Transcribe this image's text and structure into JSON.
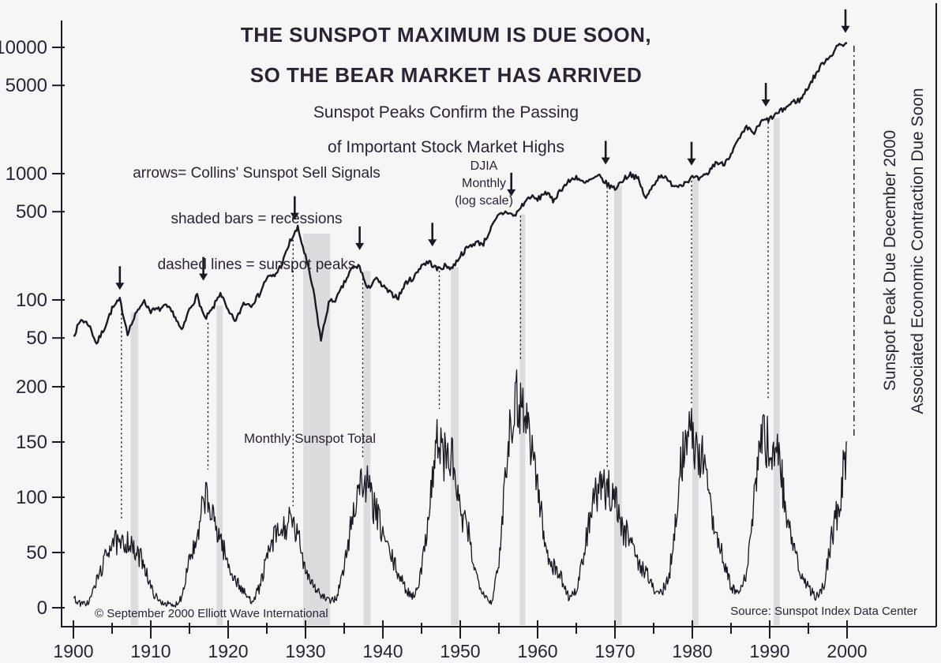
{
  "title": {
    "line1": "THE SUNSPOT MAXIMUM IS DUE SOON,",
    "line2": "SO THE BEAR MARKET HAS ARRIVED"
  },
  "subtitle": {
    "line1": "Sunspot Peaks Confirm the Passing",
    "line2": "of Important Stock Market Highs"
  },
  "legend": {
    "line1": "arrows= Collins' Sunspot Sell Signals",
    "line2": "shaded bars = recessions",
    "line3": "dashed lines = sunspot peaks"
  },
  "series_labels": {
    "djia": "DJIA\nMonthly\n(log scale)",
    "sunspot": "Monthly Sunspot Total"
  },
  "right_labels": {
    "line1": "Sunspot Peak Due December 2000",
    "line2": "Associated Economic Contraction Due Soon"
  },
  "footer": {
    "copyright": "© September 2000 Elliott Wave International",
    "source": "Source: Sunspot Index Data Center"
  },
  "colors": {
    "ink": "#2b2433",
    "line": "#1c1923",
    "band": "#dcdcdf",
    "background": "#f7f6f7"
  },
  "chart_data": {
    "type": "line",
    "title": "THE SUNSPOT MAXIMUM IS DUE SOON, SO THE BEAR MARKET HAS ARRIVED",
    "subtitle": "Sunspot Peaks Confirm the Passing of Important Stock Market Highs",
    "x_range": [
      1900,
      2000
    ],
    "x_ticks_major": [
      1900,
      1910,
      1920,
      1930,
      1940,
      1950,
      1960,
      1970,
      1980,
      1990,
      2000
    ],
    "x_tick_minor_step": 5,
    "djia_axis": {
      "scale": "log",
      "label": "DJIA Monthly (log scale)",
      "ticks": [
        10000,
        5000,
        1000,
        500,
        100,
        50
      ]
    },
    "sunspot_axis": {
      "scale": "linear",
      "label": "Monthly Sunspot Total",
      "ticks": [
        200,
        150,
        100,
        50,
        0
      ]
    },
    "series": [
      {
        "name": "DJIA Monthly (log scale)",
        "start_year": 1900,
        "values": [
          52,
          70,
          64,
          45,
          60,
          85,
          100,
          55,
          75,
          99,
          82,
          84,
          89,
          77,
          56,
          85,
          108,
          70,
          85,
          115,
          80,
          68,
          95,
          92,
          110,
          150,
          155,
          195,
          290,
          370,
          220,
          120,
          48,
          95,
          102,
          135,
          178,
          185,
          120,
          148,
          128,
          112,
          105,
          138,
          150,
          190,
          200,
          175,
          185,
          180,
          225,
          260,
          285,
          280,
          370,
          470,
          500,
          460,
          560,
          660,
          620,
          720,
          610,
          750,
          860,
          950,
          830,
          900,
          950,
          820,
          760,
          890,
          1000,
          900,
          630,
          830,
          990,
          850,
          800,
          850,
          930,
          900,
          1000,
          1230,
          1180,
          1450,
          1850,
          2300,
          2100,
          2600,
          2700,
          3000,
          3300,
          3700,
          3850,
          4900,
          6200,
          7700,
          8800,
          10500,
          10800
        ]
      },
      {
        "name": "Monthly Sunspot Total",
        "start_year": 1900,
        "values": [
          9,
          3,
          5,
          24,
          42,
          63,
          54,
          62,
          48,
          44,
          18,
          6,
          4,
          1,
          10,
          47,
          57,
          104,
          80,
          64,
          38,
          25,
          14,
          6,
          17,
          44,
          64,
          69,
          78,
          65,
          36,
          21,
          11,
          6,
          9,
          36,
          80,
          114,
          110,
          88,
          67,
          47,
          31,
          16,
          10,
          33,
          93,
          152,
          136,
          134,
          84,
          69,
          31,
          14,
          4,
          38,
          142,
          190,
          185,
          159,
          112,
          54,
          38,
          28,
          10,
          15,
          47,
          94,
          106,
          106,
          104,
          67,
          69,
          38,
          34,
          16,
          13,
          28,
          93,
          155,
          155,
          140,
          116,
          67,
          46,
          18,
          13,
          29,
          100,
          158,
          143,
          146,
          94,
          55,
          30,
          18,
          9,
          21,
          64,
          93,
          150
        ]
      }
    ],
    "sell_signal_arrows": [
      [
        1906.0,
        120
      ],
      [
        1916.8,
        142
      ],
      [
        1928.6,
        430
      ],
      [
        1937.0,
        248
      ],
      [
        1946.4,
        265
      ],
      [
        1956.6,
        660
      ],
      [
        1968.8,
        1180
      ],
      [
        1979.9,
        1160
      ],
      [
        1989.5,
        3400
      ],
      [
        1999.8,
        13000
      ]
    ],
    "sunspot_peak_lines": [
      [
        1906.2,
        92,
        80,
        "dot"
      ],
      [
        1917.4,
        66,
        125,
        "dot"
      ],
      [
        1928.4,
        300,
        92,
        "dot"
      ],
      [
        1937.4,
        160,
        135,
        "dot"
      ],
      [
        1947.3,
        170,
        180,
        "dot"
      ],
      [
        1957.8,
        465,
        225,
        "dot"
      ],
      [
        1969.0,
        790,
        125,
        "dot"
      ],
      [
        1979.9,
        880,
        185,
        "dot"
      ],
      [
        1989.8,
        2550,
        188,
        "dot"
      ],
      [
        2000.9,
        10300,
        155,
        "dashdot"
      ]
    ],
    "recession_bands": [
      [
        1907.4,
        1908.4,
        80
      ],
      [
        1918.5,
        1919.3,
        90
      ],
      [
        1929.7,
        1933.2,
        335
      ],
      [
        1937.5,
        1938.4,
        170
      ],
      [
        1948.8,
        1949.8,
        182
      ],
      [
        1957.7,
        1958.4,
        475
      ],
      [
        1969.9,
        1970.9,
        810
      ],
      [
        1980.0,
        1980.8,
        905
      ],
      [
        1990.5,
        1991.3,
        2760
      ]
    ],
    "render": {
      "seed": 7,
      "djia_substeps": 6,
      "djia_jitter_log": 0.021,
      "sunspot_substeps": 10,
      "sunspot_jitter_frac": 0.16,
      "sunspot_jitter_base": 2.2
    }
  }
}
